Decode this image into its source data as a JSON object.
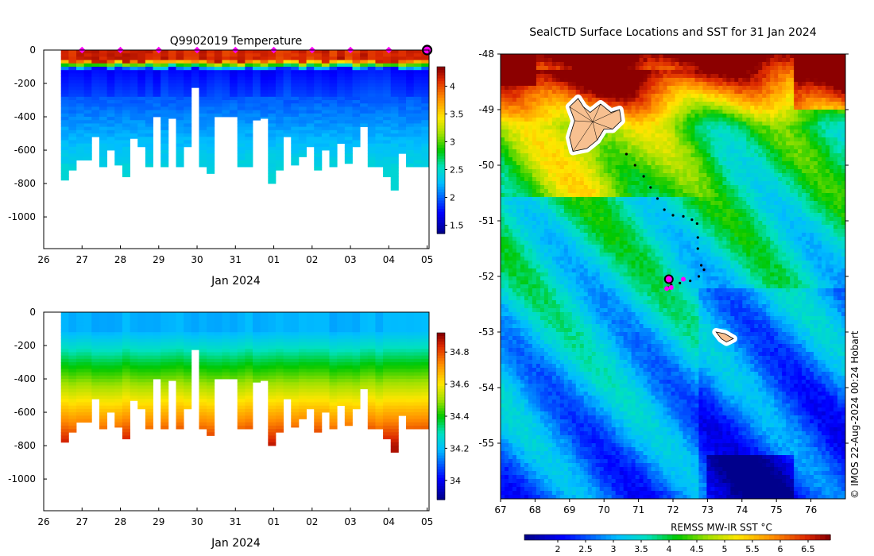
{
  "chart_data": [
    {
      "type": "heatmap",
      "name": "temperature-profile",
      "title": "Q9902019  Temperature",
      "xlabel": "Jan 2024",
      "ylabel": "",
      "x_ticks": [
        "26",
        "27",
        "28",
        "29",
        "30",
        "31",
        "01",
        "02",
        "03",
        "04",
        "05"
      ],
      "y_ticks": [
        "0",
        "-200",
        "-400",
        "-600",
        "-800",
        "-1000"
      ],
      "ylim": [
        -1190,
        0
      ],
      "xlim": [
        26,
        36.05
      ],
      "colorbar_ticks": [
        "1.5",
        "2",
        "2.5",
        "3",
        "3.5",
        "4"
      ],
      "colorbar_range": [
        1.35,
        4.35
      ],
      "profile_marker_days": [
        27,
        28,
        29,
        30,
        31,
        32,
        33,
        34,
        35,
        36
      ],
      "latest_profile_day": 36,
      "profile_start_day": 26.45,
      "profile_end_day": 36.05,
      "profile_count": 48,
      "profile_depths_m": [
        780,
        720,
        660,
        660,
        520,
        700,
        600,
        690,
        760,
        530,
        580,
        700,
        400,
        700,
        410,
        700,
        580,
        225,
        700,
        740,
        400,
        400,
        400,
        700,
        700,
        420,
        410,
        800,
        720,
        520,
        690,
        640,
        580,
        720,
        600,
        700,
        560,
        680,
        580,
        460,
        700,
        700,
        760,
        840,
        620,
        700,
        700,
        700
      ]
    },
    {
      "type": "heatmap",
      "name": "salinity-profile",
      "title": "",
      "xlabel": "Jan 2024",
      "ylabel": "",
      "x_ticks": [
        "26",
        "27",
        "28",
        "29",
        "30",
        "31",
        "01",
        "02",
        "03",
        "04",
        "05"
      ],
      "y_ticks": [
        "0",
        "-200",
        "-400",
        "-600",
        "-800",
        "-1000"
      ],
      "ylim": [
        -1190,
        0
      ],
      "xlim": [
        26,
        36.05
      ],
      "colorbar_ticks": [
        "34",
        "34.2",
        "34.4",
        "34.6",
        "34.8"
      ],
      "colorbar_range": [
        33.88,
        34.92
      ]
    },
    {
      "type": "heatmap",
      "name": "sst-map",
      "title": "SealCTD Surface Locations and SST for 31 Jan 2024",
      "xlabel": "",
      "ylabel": "",
      "x_ticks": [
        "67",
        "68",
        "69",
        "70",
        "71",
        "72",
        "73",
        "74",
        "75",
        "76"
      ],
      "y_ticks": [
        "-48",
        "-49",
        "-50",
        "-51",
        "-52",
        "-53",
        "-54",
        "-55"
      ],
      "xlim": [
        67,
        77
      ],
      "ylim": [
        -56,
        -48
      ],
      "colorbar_label": "REMSS MW-IR SST °C",
      "colorbar_ticks": [
        "2",
        "2.5",
        "3",
        "3.5",
        "4",
        "4.5",
        "5",
        "5.5",
        "6",
        "6.5"
      ],
      "colorbar_range": [
        1.4,
        6.9
      ],
      "track": [
        [
          70.65,
          -49.8
        ],
        [
          70.9,
          -50.0
        ],
        [
          71.15,
          -50.2
        ],
        [
          71.35,
          -50.4
        ],
        [
          71.55,
          -50.6
        ],
        [
          71.75,
          -50.8
        ],
        [
          72.0,
          -50.9
        ],
        [
          72.3,
          -50.92
        ],
        [
          72.55,
          -50.98
        ],
        [
          72.7,
          -51.05
        ],
        [
          72.72,
          -51.3
        ],
        [
          72.72,
          -51.5
        ],
        [
          72.82,
          -51.8
        ],
        [
          72.9,
          -51.88
        ],
        [
          72.75,
          -52.0
        ],
        [
          72.5,
          -52.08
        ],
        [
          72.2,
          -52.12
        ],
        [
          71.95,
          -52.15
        ],
        [
          71.85,
          -52.2
        ]
      ],
      "latest_position": [
        71.88,
        -52.05
      ],
      "recent_positions": [
        [
          71.82,
          -52.22
        ],
        [
          71.95,
          -52.2
        ],
        [
          72.3,
          -52.05
        ]
      ],
      "islands": [
        {
          "name": "Kerguelen",
          "outline": [
            [
              69.0,
              -48.95
            ],
            [
              69.25,
              -48.8
            ],
            [
              69.4,
              -48.95
            ],
            [
              69.6,
              -49.05
            ],
            [
              69.9,
              -48.9
            ],
            [
              70.2,
              -49.05
            ],
            [
              70.45,
              -49.0
            ],
            [
              70.5,
              -49.2
            ],
            [
              70.25,
              -49.35
            ],
            [
              70.0,
              -49.35
            ],
            [
              69.8,
              -49.55
            ],
            [
              69.5,
              -49.7
            ],
            [
              69.1,
              -49.75
            ],
            [
              69.0,
              -49.5
            ],
            [
              69.15,
              -49.2
            ]
          ]
        },
        {
          "name": "Heard",
          "outline": [
            [
              73.25,
              -53.0
            ],
            [
              73.5,
              -53.03
            ],
            [
              73.75,
              -53.12
            ],
            [
              73.55,
              -53.18
            ],
            [
              73.4,
              -53.12
            ]
          ]
        }
      ]
    }
  ],
  "credit": "© IMOS 22-Aug-2024 00:24 Hobart",
  "colors": {
    "profile_marker": "#ff00ff",
    "island_fill": "#f7c090",
    "track": "#000000",
    "axes": "#000000"
  }
}
